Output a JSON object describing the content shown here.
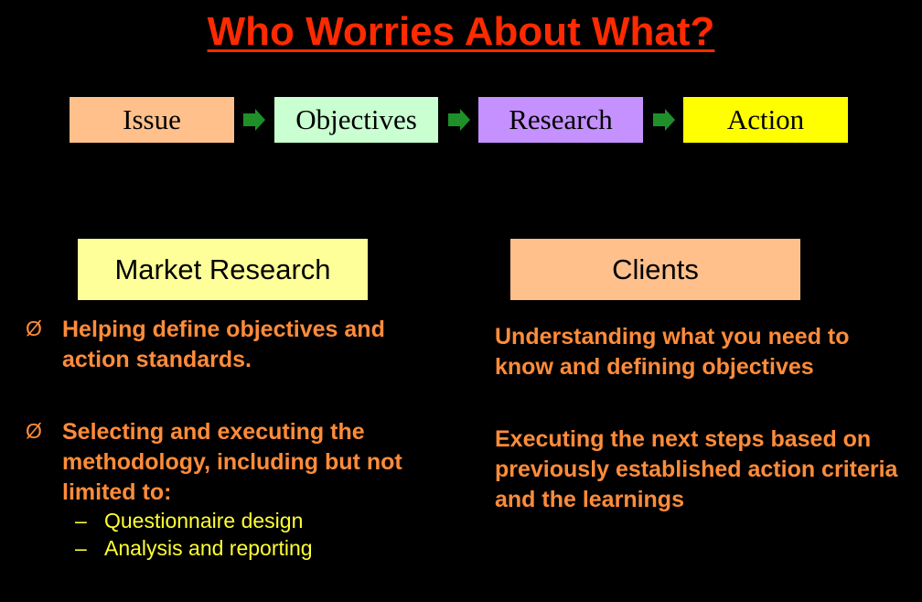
{
  "title": "Who Worries About What?",
  "flow": {
    "steps": [
      {
        "label": "Issue",
        "color": "#ffc08c"
      },
      {
        "label": "Objectives",
        "color": "#c9ffd1"
      },
      {
        "label": "Research",
        "color": "#c591ff"
      },
      {
        "label": "Action",
        "color": "#ffff00"
      }
    ],
    "arrow_icon": "green-arrow-right-icon",
    "arrow_color": "#1f8f2a"
  },
  "market_research": {
    "heading": "Market Research",
    "bullet_marker": "Ø",
    "bullets": [
      "Helping define objectives and action standards.",
      "Selecting and executing the methodology, including but not limited to:"
    ],
    "sub_marker": "–",
    "sub_items": [
      "Questionnaire design",
      "Analysis and reporting"
    ]
  },
  "clients": {
    "heading": "Clients",
    "items": [
      "Understanding what you need to know and defining objectives",
      "Executing the next steps based on previously established action criteria and the learnings"
    ]
  },
  "colors": {
    "background": "#000000",
    "title": "#ff2a00",
    "body_text": "#ff8c3a",
    "sub_text": "#ffff33"
  }
}
